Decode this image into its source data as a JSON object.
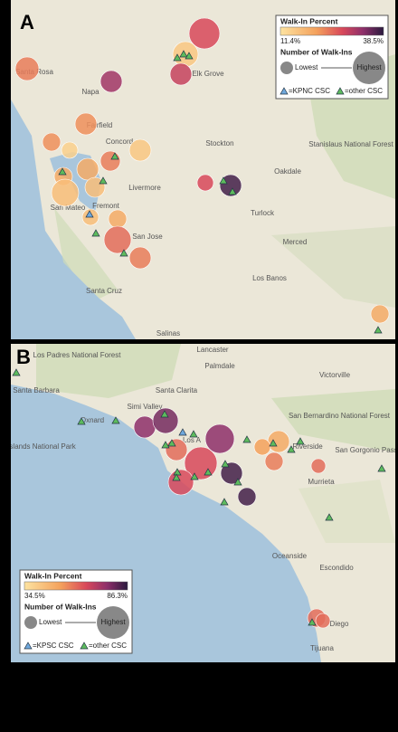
{
  "panels": [
    {
      "label": "A",
      "legend": {
        "title": "Walk-In Percent",
        "min": "11.4%",
        "max": "38.5%",
        "size_title": "Number of Walk-Ins",
        "lowest": "Lowest",
        "highest": "Highest",
        "kp": "=KPNC CSC",
        "other": "=other CSC"
      },
      "places": [
        "Santa Rosa",
        "Napa",
        "Fairfield",
        "Elk Grove",
        "Concord",
        "Stockton",
        "Livermore",
        "Fremont",
        "San Mateo",
        "San Jose",
        "Santa Cruz",
        "Salinas",
        "Oakdale",
        "Turlock",
        "Merced",
        "Los Banos",
        "Stanislaus National Forest"
      ]
    },
    {
      "label": "B",
      "legend": {
        "title": "Walk-In Percent",
        "min": "34.5%",
        "max": "86.3%",
        "size_title": "Number of Walk-Ins",
        "lowest": "Lowest",
        "highest": "Highest",
        "kp": "=KPSC CSC",
        "other": "=other CSC"
      },
      "places": [
        "Lancaster",
        "Palmdale",
        "Victorville",
        "Los Padres National Forest",
        "Santa Barbara",
        "Santa Clarita",
        "Simi Valley",
        "Oxnard",
        "San Bernardino National Forest",
        "Riverside",
        "San Gorgonio Pass",
        "Los A",
        "Channel Islands National Park",
        "Murrieta",
        "Oceanside",
        "Escondido",
        "Diego",
        "Tijuana"
      ]
    }
  ]
}
